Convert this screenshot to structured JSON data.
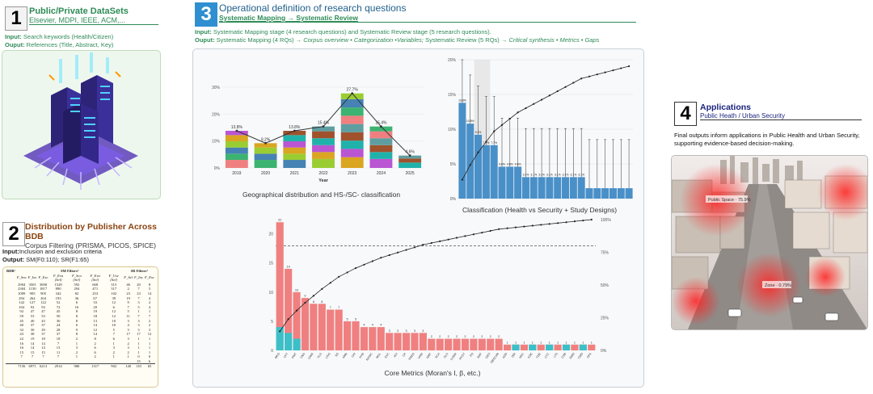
{
  "step1": {
    "num": "1",
    "title": "Public/Private DataSets",
    "subtitle": "Elsevier, MDPI, IEEE, ACM,...",
    "input_label": "Input:",
    "input_text": "Search keywords (Health/Citizen)",
    "output_label": "Ouput:",
    "output_text": "References (Title, Abstract, Key)",
    "image_icon": "isometric-server-datacenter-illustration"
  },
  "step2": {
    "num": "2",
    "title": "Distribution by Publisher Across BDB",
    "subtitle": "Corpus Filtering (PRISMA, PICOS, SPICE)",
    "input_label": "Input:",
    "input_text": "Inclusion and exclusion criteria",
    "output_label": "Output:",
    "output_text": "SM(F0:110); SR(F1:65)",
    "table": {
      "col_bdb": "BDB¹",
      "group_sm": "SM Filters²",
      "group_sr": "SR Filters³",
      "headers": [
        "F_Sea",
        "F_Inc",
        "F_Exc",
        "F_Eva (Sel)",
        "F_Sca (Sel)",
        "F_Eva (Sel)",
        "F_Use (Sel)",
        "F_Sel",
        "F_Inc",
        "F_Exc"
      ],
      "rows": [
        [
          "2904",
          "3501",
          "3690",
          "1528",
          "592",
          "668",
          "315",
          "46",
          "20",
          "8"
        ],
        [
          "2304",
          "1150",
          "1817",
          "890",
          "294",
          "471",
          "317",
          "2",
          "7",
          "5"
        ],
        [
          "1009",
          "905",
          "905",
          "342",
          "82",
          "253",
          "102",
          "23",
          "23",
          "14"
        ],
        [
          "294",
          "264",
          "204",
          "193",
          "36",
          "67",
          "39",
          "19",
          "7",
          "4"
        ],
        [
          "142",
          "127",
          "122",
          "52",
          "6",
          "33",
          "12",
          "9",
          "3",
          "2"
        ],
        [
          "104",
          "92",
          "93",
          "72",
          "16",
          "20",
          "6",
          "7",
          "5",
          "4"
        ],
        [
          "92",
          "47",
          "47",
          "45",
          "8",
          "19",
          "12",
          "5",
          "1",
          "1"
        ],
        [
          "59",
          "53",
          "53",
          "50",
          "8",
          "18",
          "12",
          "11",
          "7",
          "7"
        ],
        [
          "45",
          "40",
          "43",
          "36",
          "8",
          "13",
          "10",
          "3",
          "3",
          "2"
        ],
        [
          "40",
          "37",
          "37",
          "24",
          "6",
          "14",
          "10",
          "4",
          "3",
          "2"
        ],
        [
          "32",
          "30",
          "29",
          "28",
          "9",
          "12",
          "5",
          "3",
          "3",
          "3"
        ],
        [
          "43",
          "38",
          "37",
          "37",
          "8",
          "14",
          "7",
          "17",
          "17",
          "12"
        ],
        [
          "22",
          "19",
          "18",
          "18",
          "2",
          "8",
          "6",
          "3",
          "1",
          "1"
        ],
        [
          "16",
          "14",
          "14",
          "7",
          "1",
          "2",
          "1",
          "2",
          "1",
          "1"
        ],
        [
          "16",
          "14",
          "14",
          "13",
          "3",
          "6",
          "3",
          "3",
          "1",
          "1"
        ],
        [
          "15",
          "15",
          "15",
          "11",
          "2",
          "6",
          "2",
          "2",
          "1",
          "1"
        ],
        [
          "7",
          "7",
          "7",
          "7",
          "1",
          "2",
          "1",
          "1",
          "0",
          "0"
        ],
        [
          "",
          "",
          "",
          "",
          "",
          "",
          "",
          "",
          "15",
          "6"
        ],
        [
          "7156",
          "6971",
          "6213",
          "2914",
          "980",
          "1317",
          "902",
          "140",
          "110",
          "65"
        ]
      ]
    }
  },
  "step3": {
    "num": "3",
    "title": "Operational definition of research questions",
    "subtitle": "Systematic Mapping → Systematic Review",
    "input_label": "Input:",
    "input_text": "Systematic Mapping stage (4 research questions) and Systematic Review stage (5 research questions).",
    "output_label": "Ouput:",
    "output_text_a": "Systematic Mapping (4 RQs) →",
    "output_text_b": "Corpus overview • Categorization •Variables;",
    "output_text_c": "Systematic Review (5 RQs) →",
    "output_text_d": "Critical synthesis • Metrics • Gaps"
  },
  "step4": {
    "num": "4",
    "title": "Applications",
    "subtitle": "Public Heath / Urban Security",
    "description": "Final outputs inform applications in Public Health and Urban Security, supporting evidence-based decision-making.",
    "image_icon": "aerial-city-heatmap-illustration",
    "image_labels": [
      "Public Space · 75.9%",
      "Zone · 0.79%"
    ]
  },
  "captions": {
    "geo": "Geographical distribution and HS-/SC- classification",
    "classification": "Classification (Health vs Security + Study Designs)",
    "core": "Core Metrics (Moran's I, β, etc.)"
  },
  "colors": {
    "green": "#2e8b57",
    "blue": "#2f8fd0",
    "salmon": "#f08080",
    "teal": "#3cc0c8",
    "steel": "#4a90c8"
  },
  "chart_data": [
    {
      "type": "bar",
      "xlabel": "Year",
      "categories": [
        "2019",
        "2020",
        "2021",
        "2022",
        "2023",
        "2024",
        "2025"
      ],
      "values": [
        13.8,
        9.2,
        13.8,
        15.4,
        27.7,
        15.4,
        4.6
      ],
      "value_labels": [
        "13.8%",
        "9.2%",
        "13.8%",
        "15.4%",
        "27.7%",
        "15.4%",
        "4.6%"
      ],
      "yticks": [
        "0%",
        "10%",
        "20%",
        "30%"
      ],
      "ylim": [
        0,
        33
      ],
      "stacked": true,
      "segment_colors": [
        "#f08080",
        "#3cb371",
        "#4682b4",
        "#9acd32",
        "#daa520",
        "#ba55d3",
        "#20b2aa",
        "#a0522d",
        "#5f9ea0"
      ],
      "line_overlay": true
    },
    {
      "type": "bar",
      "categories": [
        "1",
        "2",
        "3",
        "4",
        "5",
        "6",
        "7",
        "8",
        "9",
        "10",
        "11",
        "12",
        "13",
        "14",
        "15",
        "16",
        "17",
        "18",
        "19",
        "20",
        "21",
        "22"
      ],
      "values": [
        13.8,
        10.8,
        9.2,
        7.7,
        7.7,
        4.6,
        4.6,
        4.6,
        3.1,
        3.1,
        3.1,
        3.1,
        3.1,
        3.1,
        3.1,
        3.1,
        1.5,
        1.5,
        1.5,
        1.5,
        1.5,
        1.5
      ],
      "value_labels": [
        "13.8%",
        "10.8%",
        "9.2%",
        "7.7%",
        "7.7%",
        "4.6%",
        "4.6%",
        "4.6%",
        "3.1%",
        "3.1%",
        "3.1%",
        "3.1%",
        "3.1%",
        "3.1%",
        "3.1%",
        "3.1%",
        "",
        "",
        "",
        "",
        "",
        ""
      ],
      "yticks": [
        "0%",
        "5%",
        "10%",
        "15%",
        "20%"
      ],
      "ylim": [
        0,
        20
      ],
      "cumulative_line": true
    },
    {
      "type": "bar",
      "categories": [
        "MKD",
        "CFT",
        "PMT",
        "CNS",
        "GWR",
        "GLS",
        "LISA",
        "SD",
        "ANN",
        "CHI",
        "HYB",
        "BASIC",
        "MUL",
        "SVC",
        "ACI",
        "CP",
        "PRED",
        "VARI",
        "RMT",
        "SCA",
        "OLS",
        "CORR",
        "PFOT",
        "PD",
        "RRF",
        "GEO",
        "DBSCAN",
        "ADD",
        "DDI",
        "HRC",
        "KDE",
        "FDE",
        "CTC",
        "LTS",
        "CDB",
        "DMD",
        "CMD",
        "GPA"
      ],
      "values": [
        22,
        14,
        10,
        9,
        8,
        8,
        7,
        7,
        5,
        5,
        4,
        4,
        4,
        3,
        3,
        3,
        3,
        3,
        2,
        2,
        2,
        2,
        2,
        2,
        2,
        2,
        2,
        1,
        1,
        1,
        1,
        1,
        1,
        1,
        1,
        1,
        1,
        1
      ],
      "value_labels": [
        "22",
        "14",
        "10",
        "9",
        "8",
        "8",
        "7",
        "7",
        "5",
        "5",
        "4",
        "4",
        "4",
        "3",
        "3",
        "3",
        "3",
        "3",
        "2",
        "2",
        "2",
        "2",
        "2",
        "2",
        "2",
        "2",
        "2",
        "1",
        "1",
        "1",
        "1",
        "1",
        "1",
        "1",
        "1",
        "1",
        "1",
        "1"
      ],
      "teal_share": [
        4,
        3,
        2,
        0,
        0,
        0,
        0,
        0,
        0,
        0,
        0,
        0,
        0,
        0,
        0,
        0,
        0,
        0,
        0,
        0,
        0,
        0,
        0,
        0,
        0,
        0,
        0,
        0,
        1,
        0,
        1,
        0,
        1,
        0,
        1,
        0,
        1,
        0
      ],
      "yticks": [
        "0",
        "5",
        "10",
        "15",
        "20"
      ],
      "ylim": [
        0,
        23
      ],
      "right_ticks": [
        "0%",
        "25%",
        "50%",
        "75%",
        "100%"
      ],
      "threshold_percent": 80,
      "cumulative_line": true
    }
  ]
}
